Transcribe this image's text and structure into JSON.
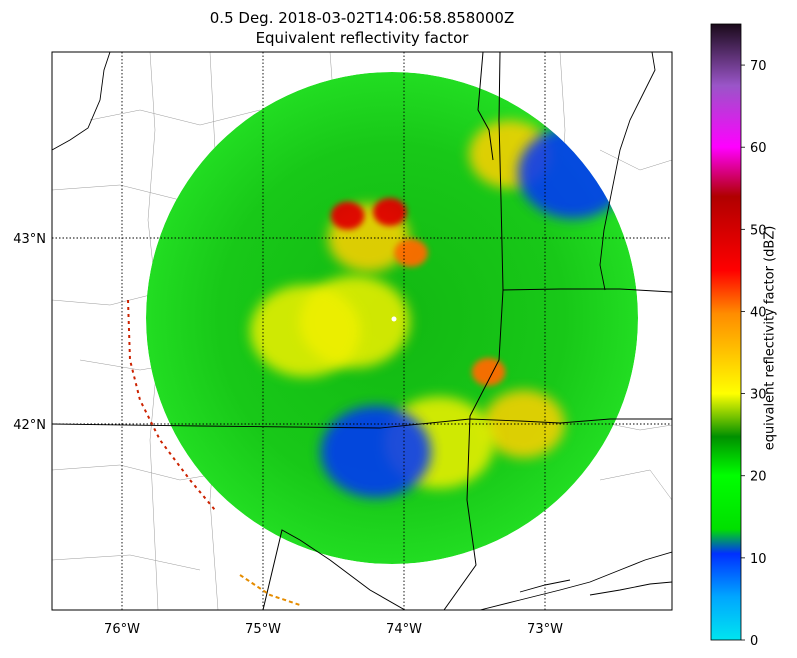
{
  "chart_data": {
    "type": "heatmap",
    "title": "0.5 Deg. 2018-03-02T14:06:58.858000Z",
    "subtitle": "Equivalent reflectivity factor",
    "x_ticks": [
      "76°W",
      "75°W",
      "74°W",
      "73°W"
    ],
    "x_tick_values": [
      -76,
      -75,
      -74,
      -73
    ],
    "y_ticks": [
      "43°N",
      "42°N"
    ],
    "y_tick_values": [
      43,
      42
    ],
    "lon_range": [
      -76.5,
      -72.1
    ],
    "lat_range": [
      41.0,
      44.0
    ],
    "grid": "dotted graticule",
    "colorbar": {
      "label": "equivalent reflectivity factor (dBZ)",
      "range": [
        0,
        75
      ],
      "ticks": [
        0,
        10,
        20,
        30,
        40,
        50,
        60,
        70
      ],
      "colors": [
        "#00e5f0",
        "#00a6ff",
        "#0030ff",
        "#00ff00",
        "#00cc00",
        "#009000",
        "#ffff00",
        "#ffc000",
        "#ff8c00",
        "#ff0000",
        "#d00000",
        "#b00000",
        "#ff00ff",
        "#9a55c8",
        "#1a0a1a"
      ]
    },
    "radar_site": {
      "lon": -73.97,
      "lat": 42.59
    },
    "echo_regions": [
      {
        "lon": -74.25,
        "lat": 43.0,
        "dbz": 35
      },
      {
        "lon": -74.4,
        "lat": 43.12,
        "dbz": 50
      },
      {
        "lon": -74.1,
        "lat": 43.14,
        "dbz": 52
      },
      {
        "lon": -73.95,
        "lat": 42.92,
        "dbz": 45
      },
      {
        "lon": -73.4,
        "lat": 42.28,
        "dbz": 45
      },
      {
        "lon": -73.15,
        "lat": 42.0,
        "dbz": 38
      },
      {
        "lon": -74.35,
        "lat": 42.55,
        "dbz": 32
      },
      {
        "lon": -74.7,
        "lat": 42.5,
        "dbz": 30
      },
      {
        "lon": -73.75,
        "lat": 41.9,
        "dbz": 30
      },
      {
        "lon": -73.25,
        "lat": 43.45,
        "dbz": 35
      },
      {
        "lon": -74.2,
        "lat": 41.85,
        "dbz": 12
      },
      {
        "lon": -72.8,
        "lat": 43.35,
        "dbz": 12
      }
    ]
  }
}
